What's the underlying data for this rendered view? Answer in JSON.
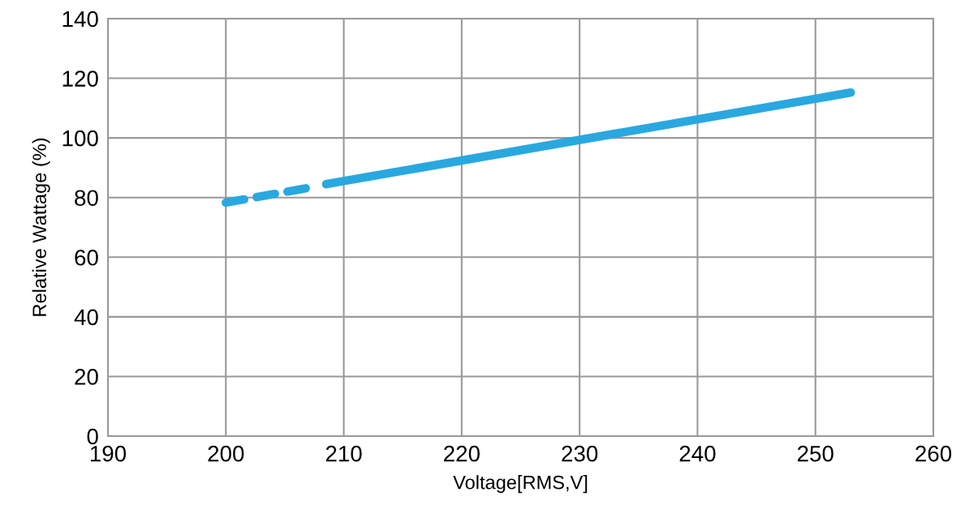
{
  "chart_data": {
    "type": "line",
    "xlabel": "Voltage[RMS,V]",
    "ylabel": "Relative Wattage (%)",
    "series": [
      {
        "color": "#29a8e0",
        "x": [
          200,
          207.2
        ],
        "values": [
          78.3,
          83.4
        ],
        "line_style": "dashed"
      },
      {
        "color": "#29a8e0",
        "x": [
          208.5,
          253
        ],
        "values": [
          84.5,
          115.2
        ],
        "line_style": "solid"
      }
    ],
    "xlim": [
      190,
      260
    ],
    "xticks": [
      190,
      200,
      210,
      220,
      230,
      240,
      250,
      260
    ],
    "ylim": [
      0,
      140
    ],
    "yticks": [
      0,
      20,
      40,
      60,
      80,
      100,
      120,
      140
    ],
    "grid": true,
    "marker": "none"
  }
}
